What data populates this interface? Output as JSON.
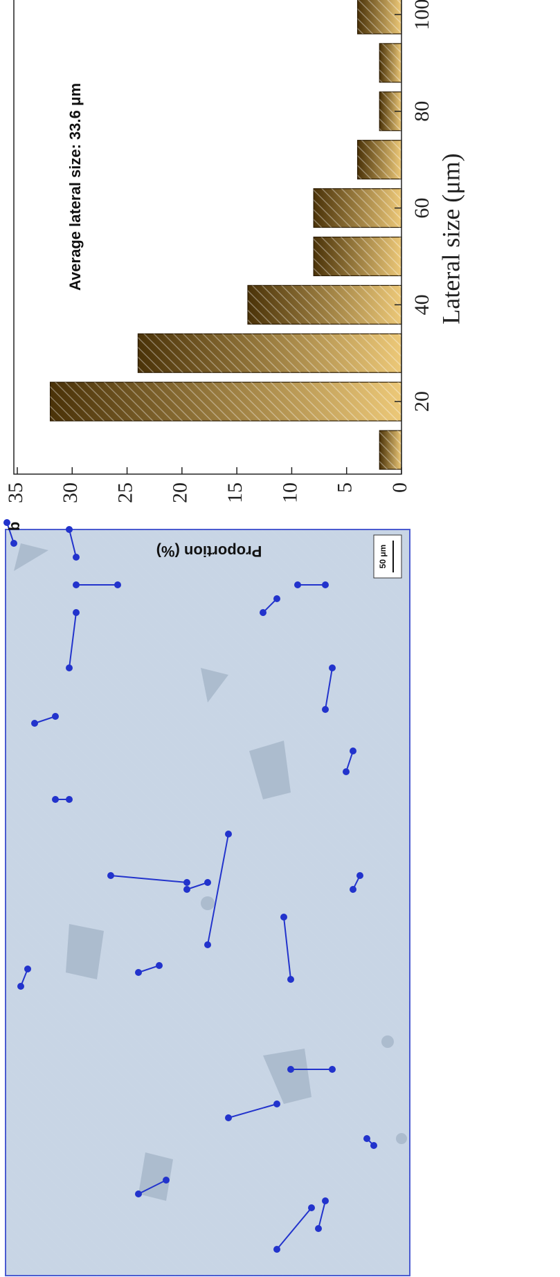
{
  "label": "b",
  "scale_bar": "50 μm",
  "chart_data": {
    "type": "bar",
    "x": [
      10,
      20,
      30,
      40,
      50,
      60,
      70,
      80,
      90,
      100
    ],
    "values": [
      2,
      32,
      24,
      14,
      8,
      8,
      4,
      2,
      2,
      4
    ],
    "color": "#ecc878",
    "xlabel": "Lateral size (μm)",
    "ylabel": "Proportion (%)",
    "annotation": "Average lateral size: 33.6 μm",
    "xlim": [
      5,
      103
    ],
    "ylim": [
      0,
      35
    ],
    "xticks": [
      20,
      40,
      60,
      80,
      100
    ],
    "yticks": [
      0,
      5,
      10,
      15,
      20,
      25,
      30,
      35
    ]
  }
}
